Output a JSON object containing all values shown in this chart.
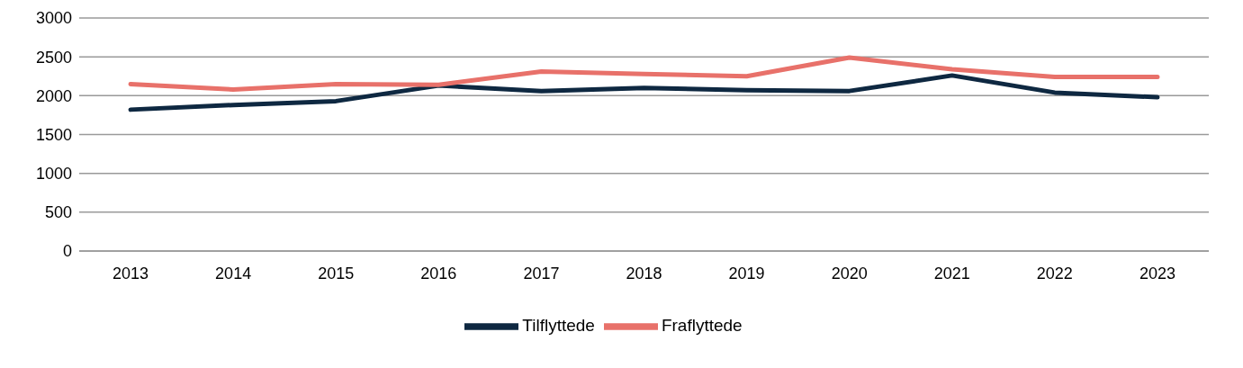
{
  "chart_data": {
    "type": "line",
    "categories": [
      "2013",
      "2014",
      "2015",
      "2016",
      "2017",
      "2018",
      "2019",
      "2020",
      "2021",
      "2022",
      "2023"
    ],
    "series": [
      {
        "name": "Tilflyttede",
        "color": "#0e2841",
        "values": [
          1820,
          1880,
          1930,
          2130,
          2060,
          2100,
          2070,
          2060,
          2260,
          2040,
          1980
        ]
      },
      {
        "name": "Fraflyttede",
        "color": "#e8716a",
        "values": [
          2150,
          2080,
          2150,
          2140,
          2310,
          2280,
          2250,
          2490,
          2340,
          2240,
          2240
        ]
      }
    ],
    "ylim": [
      0,
      3000
    ],
    "yticks": [
      0,
      500,
      1000,
      1500,
      2000,
      2500,
      3000
    ],
    "grid": "y",
    "legend": "bottom",
    "marker": "none",
    "line_style": "solid"
  }
}
